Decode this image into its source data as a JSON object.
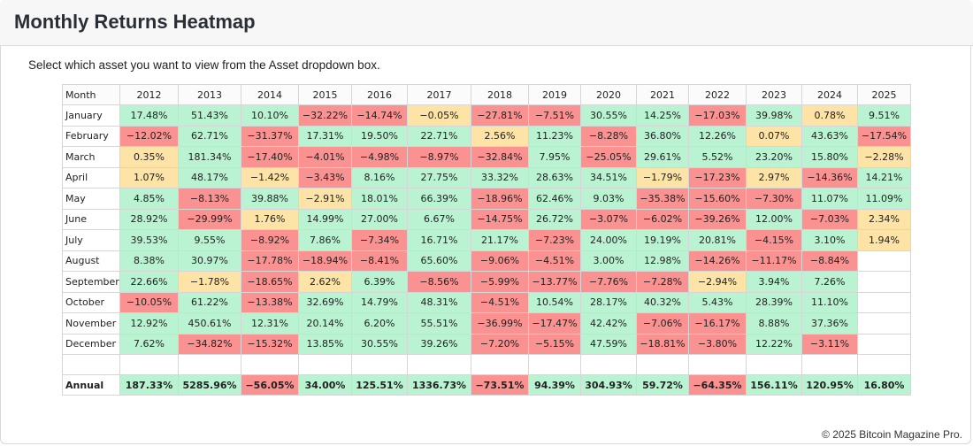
{
  "header": {
    "title": "Monthly Returns Heatmap"
  },
  "instruction": "Select which asset you want to view from the Asset dropdown box.",
  "footer": "© 2025 Bitcoin Magazine Pro.",
  "colors": {
    "positive": "#b9f3d2",
    "small": "#fde3a6",
    "negative": "#fa9292",
    "empty": "#ffffff"
  },
  "chart_data": {
    "type": "heatmap",
    "title": "Monthly Returns Heatmap",
    "row_header": "Month",
    "years": [
      "2012",
      "2013",
      "2014",
      "2015",
      "2016",
      "2017",
      "2018",
      "2019",
      "2020",
      "2021",
      "2022",
      "2023",
      "2024",
      "2025"
    ],
    "rows": [
      {
        "label": "January",
        "values": [
          "17.48%",
          "51.43%",
          "10.10%",
          "−32.22%",
          "−14.74%",
          "−0.05%",
          "−27.81%",
          "−7.51%",
          "30.55%",
          "14.25%",
          "−17.03%",
          "39.98%",
          "0.78%",
          "9.51%"
        ]
      },
      {
        "label": "February",
        "values": [
          "−12.02%",
          "62.71%",
          "−31.37%",
          "17.31%",
          "19.50%",
          "22.71%",
          "2.56%",
          "11.23%",
          "−8.28%",
          "36.80%",
          "12.26%",
          "0.07%",
          "43.63%",
          "−17.54%"
        ]
      },
      {
        "label": "March",
        "values": [
          "0.35%",
          "181.34%",
          "−17.40%",
          "−4.01%",
          "−4.98%",
          "−8.97%",
          "−32.84%",
          "7.95%",
          "−25.05%",
          "29.61%",
          "5.52%",
          "23.20%",
          "15.80%",
          "−2.28%"
        ]
      },
      {
        "label": "April",
        "values": [
          "1.07%",
          "48.17%",
          "−1.42%",
          "−3.43%",
          "8.16%",
          "27.75%",
          "33.32%",
          "28.63%",
          "34.51%",
          "−1.79%",
          "−17.23%",
          "2.97%",
          "−14.36%",
          "14.21%"
        ]
      },
      {
        "label": "May",
        "values": [
          "4.85%",
          "−8.13%",
          "39.88%",
          "−2.91%",
          "18.01%",
          "66.39%",
          "−18.96%",
          "62.46%",
          "9.03%",
          "−35.38%",
          "−15.60%",
          "−7.30%",
          "11.07%",
          "11.09%"
        ]
      },
      {
        "label": "June",
        "values": [
          "28.92%",
          "−29.99%",
          "1.76%",
          "14.99%",
          "27.00%",
          "6.67%",
          "−14.75%",
          "26.72%",
          "−3.07%",
          "−6.02%",
          "−39.26%",
          "12.00%",
          "−7.03%",
          "2.34%"
        ]
      },
      {
        "label": "July",
        "values": [
          "39.53%",
          "9.55%",
          "−8.92%",
          "7.86%",
          "−7.34%",
          "16.71%",
          "21.17%",
          "−7.23%",
          "24.00%",
          "19.19%",
          "20.81%",
          "−4.15%",
          "3.10%",
          "1.94%"
        ]
      },
      {
        "label": "August",
        "values": [
          "8.38%",
          "30.97%",
          "−17.78%",
          "−18.94%",
          "−8.41%",
          "65.60%",
          "−9.06%",
          "−4.51%",
          "3.00%",
          "12.98%",
          "−14.26%",
          "−11.17%",
          "−8.84%",
          ""
        ]
      },
      {
        "label": "September",
        "values": [
          "22.66%",
          "−1.78%",
          "−18.65%",
          "2.62%",
          "6.39%",
          "−8.56%",
          "−5.99%",
          "−13.77%",
          "−7.76%",
          "−7.28%",
          "−2.94%",
          "3.94%",
          "7.26%",
          ""
        ]
      },
      {
        "label": "October",
        "values": [
          "−10.05%",
          "61.22%",
          "−13.38%",
          "32.69%",
          "14.79%",
          "48.31%",
          "−4.51%",
          "10.54%",
          "28.17%",
          "40.32%",
          "5.43%",
          "28.39%",
          "11.10%",
          ""
        ]
      },
      {
        "label": "November",
        "values": [
          "12.92%",
          "450.61%",
          "12.31%",
          "20.14%",
          "6.20%",
          "55.51%",
          "−36.99%",
          "−17.47%",
          "42.42%",
          "−7.06%",
          "−16.17%",
          "8.88%",
          "37.36%",
          ""
        ]
      },
      {
        "label": "December",
        "values": [
          "7.62%",
          "−34.82%",
          "−15.32%",
          "13.85%",
          "30.55%",
          "39.26%",
          "−7.20%",
          "−5.15%",
          "47.59%",
          "−18.81%",
          "−3.80%",
          "12.22%",
          "−3.11%",
          ""
        ]
      }
    ],
    "annual": {
      "label": "Annual",
      "values": [
        "187.33%",
        "5285.96%",
        "−56.05%",
        "34.00%",
        "125.51%",
        "1336.73%",
        "−73.51%",
        "94.39%",
        "304.93%",
        "59.72%",
        "−64.35%",
        "156.11%",
        "120.95%",
        "16.80%"
      ]
    }
  }
}
